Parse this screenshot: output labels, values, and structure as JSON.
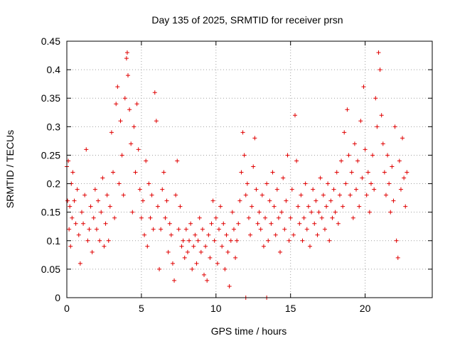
{
  "chart_data": {
    "type": "scatter",
    "title": "Day 135 of 2025, SRMTID for receiver prsn",
    "xlabel": "GPS time / hours",
    "ylabel": "SRMTID / TECUs",
    "xlim": [
      0,
      24.5
    ],
    "ylim": [
      0,
      0.45
    ],
    "xticks": [
      0,
      5,
      10,
      15,
      20
    ],
    "xtick_labels": [
      "0",
      "5",
      "10",
      "15",
      "20"
    ],
    "yticks": [
      0,
      0.05,
      0.1,
      0.15,
      0.2,
      0.25,
      0.3,
      0.35,
      0.4,
      0.45
    ],
    "ytick_labels": [
      "0",
      "0.05",
      "0.1",
      "0.15",
      "0.2",
      "0.25",
      "0.3",
      "0.35",
      "0.4",
      "0.45"
    ],
    "grid": true,
    "marker": "plus",
    "color": "#e00000",
    "series": [
      {
        "name": "SRMTID",
        "points": [
          [
            0.0,
            0.23
          ],
          [
            0.05,
            0.17
          ],
          [
            0.1,
            0.24
          ],
          [
            0.15,
            0.12
          ],
          [
            0.2,
            0.16
          ],
          [
            0.25,
            0.09
          ],
          [
            0.3,
            0.2
          ],
          [
            0.35,
            0.14
          ],
          [
            0.4,
            0.22
          ],
          [
            0.5,
            0.17
          ],
          [
            0.6,
            0.13
          ],
          [
            0.7,
            0.19
          ],
          [
            0.8,
            0.11
          ],
          [
            0.9,
            0.06
          ],
          [
            1.0,
            0.15
          ],
          [
            1.1,
            0.13
          ],
          [
            1.2,
            0.18
          ],
          [
            1.3,
            0.26
          ],
          [
            1.4,
            0.1
          ],
          [
            1.5,
            0.12
          ],
          [
            1.6,
            0.16
          ],
          [
            1.7,
            0.08
          ],
          [
            1.8,
            0.14
          ],
          [
            1.9,
            0.19
          ],
          [
            2.0,
            0.12
          ],
          [
            2.1,
            0.17
          ],
          [
            2.2,
            0.1
          ],
          [
            2.3,
            0.15
          ],
          [
            2.4,
            0.21
          ],
          [
            2.5,
            0.09
          ],
          [
            2.6,
            0.13
          ],
          [
            2.7,
            0.18
          ],
          [
            2.8,
            0.1
          ],
          [
            2.9,
            0.16
          ],
          [
            3.0,
            0.29
          ],
          [
            3.1,
            0.22
          ],
          [
            3.2,
            0.14
          ],
          [
            3.3,
            0.34
          ],
          [
            3.4,
            0.37
          ],
          [
            3.5,
            0.2
          ],
          [
            3.6,
            0.31
          ],
          [
            3.7,
            0.25
          ],
          [
            3.8,
            0.18
          ],
          [
            3.9,
            0.35
          ],
          [
            4.0,
            0.42
          ],
          [
            4.05,
            0.43
          ],
          [
            4.1,
            0.39
          ],
          [
            4.2,
            0.33
          ],
          [
            4.3,
            0.27
          ],
          [
            4.4,
            0.15
          ],
          [
            4.5,
            0.3
          ],
          [
            4.6,
            0.22
          ],
          [
            4.7,
            0.34
          ],
          [
            4.8,
            0.26
          ],
          [
            4.9,
            0.19
          ],
          [
            5.0,
            0.14
          ],
          [
            5.1,
            0.17
          ],
          [
            5.2,
            0.11
          ],
          [
            5.3,
            0.24
          ],
          [
            5.4,
            0.09
          ],
          [
            5.5,
            0.2
          ],
          [
            5.6,
            0.14
          ],
          [
            5.7,
            0.18
          ],
          [
            5.8,
            0.12
          ],
          [
            5.9,
            0.36
          ],
          [
            6.0,
            0.31
          ],
          [
            6.1,
            0.16
          ],
          [
            6.2,
            0.05
          ],
          [
            6.3,
            0.12
          ],
          [
            6.4,
            0.19
          ],
          [
            6.5,
            0.22
          ],
          [
            6.6,
            0.14
          ],
          [
            6.7,
            0.17
          ],
          [
            6.8,
            0.08
          ],
          [
            6.9,
            0.13
          ],
          [
            7.0,
            0.11
          ],
          [
            7.1,
            0.06
          ],
          [
            7.2,
            0.03
          ],
          [
            7.3,
            0.18
          ],
          [
            7.4,
            0.24
          ],
          [
            7.5,
            0.12
          ],
          [
            7.6,
            0.16
          ],
          [
            7.7,
            0.09
          ],
          [
            7.8,
            0.1
          ],
          [
            7.9,
            0.07
          ],
          [
            8.0,
            0.12
          ],
          [
            8.1,
            0.08
          ],
          [
            8.2,
            0.1
          ],
          [
            8.3,
            0.13
          ],
          [
            8.4,
            0.05
          ],
          [
            8.5,
            0.09
          ],
          [
            8.6,
            0.11
          ],
          [
            8.7,
            0.06
          ],
          [
            8.8,
            0.1
          ],
          [
            8.9,
            0.14
          ],
          [
            9.0,
            0.08
          ],
          [
            9.1,
            0.12
          ],
          [
            9.2,
            0.04
          ],
          [
            9.3,
            0.09
          ],
          [
            9.4,
            0.03
          ],
          [
            9.5,
            0.11
          ],
          [
            9.6,
            0.07
          ],
          [
            9.7,
            0.13
          ],
          [
            9.8,
            0.17
          ],
          [
            9.9,
            0.1
          ],
          [
            10.0,
            0.14
          ],
          [
            10.1,
            0.06
          ],
          [
            10.2,
            0.12
          ],
          [
            10.3,
            0.16
          ],
          [
            10.4,
            0.09
          ],
          [
            10.5,
            0.13
          ],
          [
            10.6,
            0.05
          ],
          [
            10.7,
            0.11
          ],
          [
            10.8,
            0.08
          ],
          [
            10.9,
            0.02
          ],
          [
            11.0,
            0.1
          ],
          [
            11.1,
            0.15
          ],
          [
            11.2,
            0.12
          ],
          [
            11.3,
            0.07
          ],
          [
            11.4,
            0.1
          ],
          [
            11.5,
            0.13
          ],
          [
            11.6,
            0.17
          ],
          [
            11.7,
            0.22
          ],
          [
            11.8,
            0.29
          ],
          [
            11.9,
            0.25
          ],
          [
            12.0,
            0.18
          ],
          [
            12.1,
            0.2
          ],
          [
            12.2,
            0.14
          ],
          [
            12.3,
            0.11
          ],
          [
            12.4,
            0.16
          ],
          [
            12.5,
            0.23
          ],
          [
            12.6,
            0.28
          ],
          [
            12.7,
            0.19
          ],
          [
            12.8,
            0.13
          ],
          [
            12.9,
            0.15
          ],
          [
            13.0,
            0.12
          ],
          [
            13.1,
            0.18
          ],
          [
            13.2,
            0.09
          ],
          [
            13.3,
            0.14
          ],
          [
            13.4,
            0.2
          ],
          [
            13.5,
            0.1
          ],
          [
            13.6,
            0.17
          ],
          [
            13.7,
            0.13
          ],
          [
            13.8,
            0.22
          ],
          [
            13.9,
            0.16
          ],
          [
            14.0,
            0.11
          ],
          [
            14.1,
            0.19
          ],
          [
            14.2,
            0.14
          ],
          [
            14.3,
            0.08
          ],
          [
            14.4,
            0.15
          ],
          [
            14.5,
            0.21
          ],
          [
            14.6,
            0.12
          ],
          [
            14.7,
            0.17
          ],
          [
            14.8,
            0.25
          ],
          [
            14.9,
            0.1
          ],
          [
            15.0,
            0.14
          ],
          [
            15.1,
            0.19
          ],
          [
            15.2,
            0.11
          ],
          [
            15.3,
            0.32
          ],
          [
            15.4,
            0.24
          ],
          [
            15.5,
            0.16
          ],
          [
            15.6,
            0.13
          ],
          [
            15.7,
            0.18
          ],
          [
            15.8,
            0.1
          ],
          [
            15.9,
            0.14
          ],
          [
            16.0,
            0.2
          ],
          [
            16.1,
            0.12
          ],
          [
            16.2,
            0.16
          ],
          [
            16.3,
            0.09
          ],
          [
            16.4,
            0.15
          ],
          [
            16.5,
            0.19
          ],
          [
            16.6,
            0.13
          ],
          [
            16.7,
            0.17
          ],
          [
            16.8,
            0.11
          ],
          [
            16.9,
            0.15
          ],
          [
            17.0,
            0.21
          ],
          [
            17.1,
            0.14
          ],
          [
            17.2,
            0.18
          ],
          [
            17.3,
            0.12
          ],
          [
            17.4,
            0.16
          ],
          [
            17.5,
            0.2
          ],
          [
            17.6,
            0.1
          ],
          [
            17.7,
            0.17
          ],
          [
            17.8,
            0.14
          ],
          [
            17.9,
            0.19
          ],
          [
            18.0,
            0.15
          ],
          [
            18.1,
            0.22
          ],
          [
            18.2,
            0.13
          ],
          [
            18.3,
            0.18
          ],
          [
            18.4,
            0.24
          ],
          [
            18.5,
            0.16
          ],
          [
            18.6,
            0.29
          ],
          [
            18.7,
            0.2
          ],
          [
            18.8,
            0.33
          ],
          [
            18.9,
            0.25
          ],
          [
            19.0,
            0.18
          ],
          [
            19.1,
            0.22
          ],
          [
            19.2,
            0.14
          ],
          [
            19.3,
            0.27
          ],
          [
            19.4,
            0.19
          ],
          [
            19.5,
            0.24
          ],
          [
            19.6,
            0.16
          ],
          [
            19.7,
            0.31
          ],
          [
            19.8,
            0.21
          ],
          [
            19.9,
            0.37
          ],
          [
            20.0,
            0.26
          ],
          [
            20.1,
            0.18
          ],
          [
            20.2,
            0.22
          ],
          [
            20.3,
            0.15
          ],
          [
            20.4,
            0.2
          ],
          [
            20.5,
            0.25
          ],
          [
            20.6,
            0.19
          ],
          [
            20.7,
            0.35
          ],
          [
            20.8,
            0.3
          ],
          [
            20.9,
            0.43
          ],
          [
            21.0,
            0.4
          ],
          [
            21.1,
            0.32
          ],
          [
            21.2,
            0.27
          ],
          [
            21.3,
            0.22
          ],
          [
            21.4,
            0.18
          ],
          [
            21.5,
            0.25
          ],
          [
            21.6,
            0.2
          ],
          [
            21.7,
            0.15
          ],
          [
            21.8,
            0.23
          ],
          [
            21.9,
            0.17
          ],
          [
            22.0,
            0.3
          ],
          [
            22.1,
            0.1
          ],
          [
            22.2,
            0.07
          ],
          [
            22.3,
            0.24
          ],
          [
            22.4,
            0.19
          ],
          [
            22.5,
            0.28
          ],
          [
            22.6,
            0.21
          ],
          [
            22.7,
            0.16
          ],
          [
            22.8,
            0.22
          ],
          [
            12.0,
            0.0
          ],
          [
            13.4,
            0.0
          ]
        ]
      }
    ]
  }
}
